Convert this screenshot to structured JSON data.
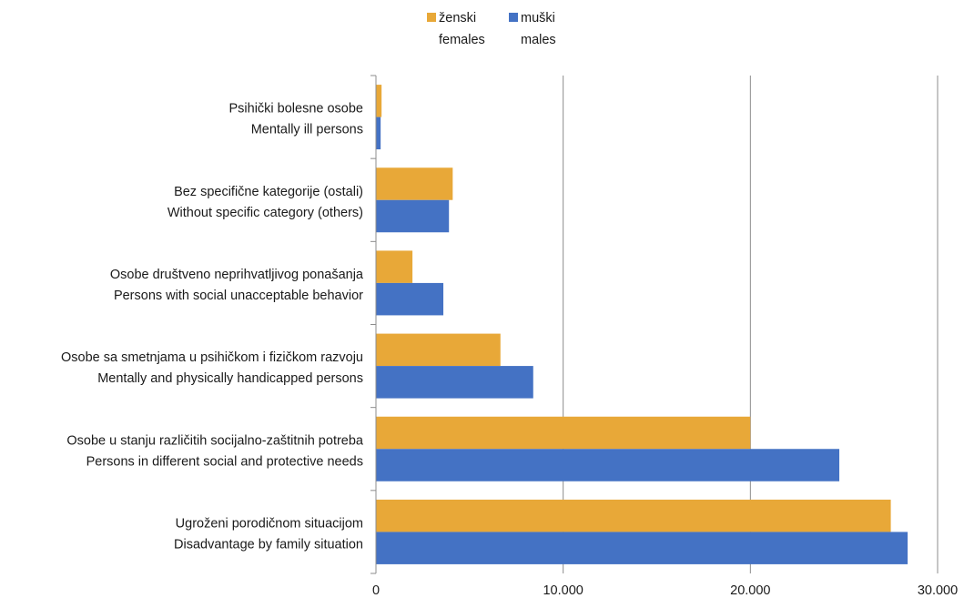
{
  "chart_data": {
    "type": "bar",
    "orientation": "horizontal",
    "categories": [
      {
        "line1": "Psihički bolesne osobe",
        "line2": "Mentally ill persons"
      },
      {
        "line1": "Bez specifične kategorije (ostali)",
        "line2": "Without specific category (others)"
      },
      {
        "line1": "Osobe društveno neprihvatljivog ponašanja",
        "line2": "Persons with social unacceptable behavior"
      },
      {
        "line1": "Osobe sa smetnjama u psihičkom i fizičkom razvoju",
        "line2": "Mentally and physically handicapped persons"
      },
      {
        "line1": "Osobe u stanju različitih socijalno-zaštitnih potreba",
        "line2": "Persons in different social and protective needs"
      },
      {
        "line1": "Ugroženi porodičnom situacijom",
        "line2": "Disadvantage by family situation"
      }
    ],
    "series": [
      {
        "name_line1": "ženski",
        "name_line2": "females",
        "color": "#E8A838",
        "values": [
          300,
          4100,
          1950,
          6650,
          20000,
          27500
        ]
      },
      {
        "name_line1": "muški",
        "name_line2": "males",
        "color": "#4472C4",
        "values": [
          250,
          3900,
          3600,
          8400,
          24750,
          28400
        ]
      }
    ],
    "xlim": [
      0,
      30000
    ],
    "ticks": [
      {
        "value": 0,
        "label": "0"
      },
      {
        "value": 10000,
        "label": "10.000"
      },
      {
        "value": 20000,
        "label": "20.000"
      },
      {
        "value": 30000,
        "label": "30.000"
      }
    ],
    "grid": true,
    "legend_position": "top-center"
  }
}
